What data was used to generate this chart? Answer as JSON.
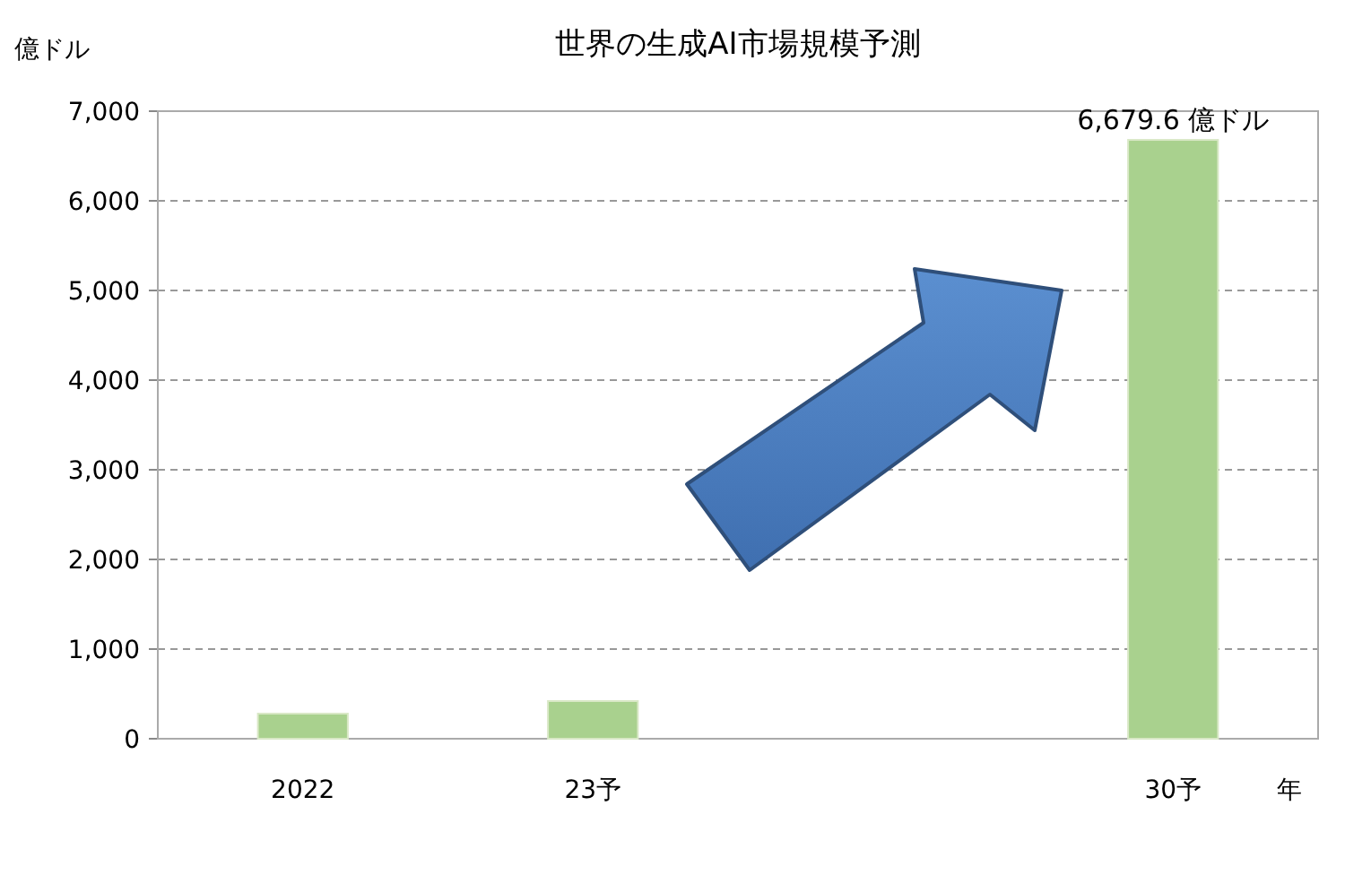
{
  "chart_data": {
    "type": "bar",
    "title": "世界の生成AI市場規模予測",
    "ylabel": "億ドル",
    "xlabel": "年",
    "categories": [
      "2022",
      "23予",
      null,
      "30予"
    ],
    "values": [
      280,
      420,
      null,
      6679.6
    ],
    "value_labels": [
      null,
      null,
      null,
      "6,679.6 億ドル"
    ],
    "color": "#a9d18e",
    "ylim": [
      0,
      7000
    ],
    "yticks": [
      0,
      {
        "value": 1000,
        "label": "1,000"
      },
      {
        "value": 2000,
        "label": "2,000"
      },
      {
        "value": 3000,
        "label": "3,000"
      },
      {
        "value": 4000,
        "label": "4,000"
      },
      {
        "value": 5000,
        "label": "5,000"
      },
      {
        "value": 6000,
        "label": "6,000"
      },
      {
        "value": 7000,
        "label": "7,000"
      }
    ],
    "grid": "y"
  }
}
